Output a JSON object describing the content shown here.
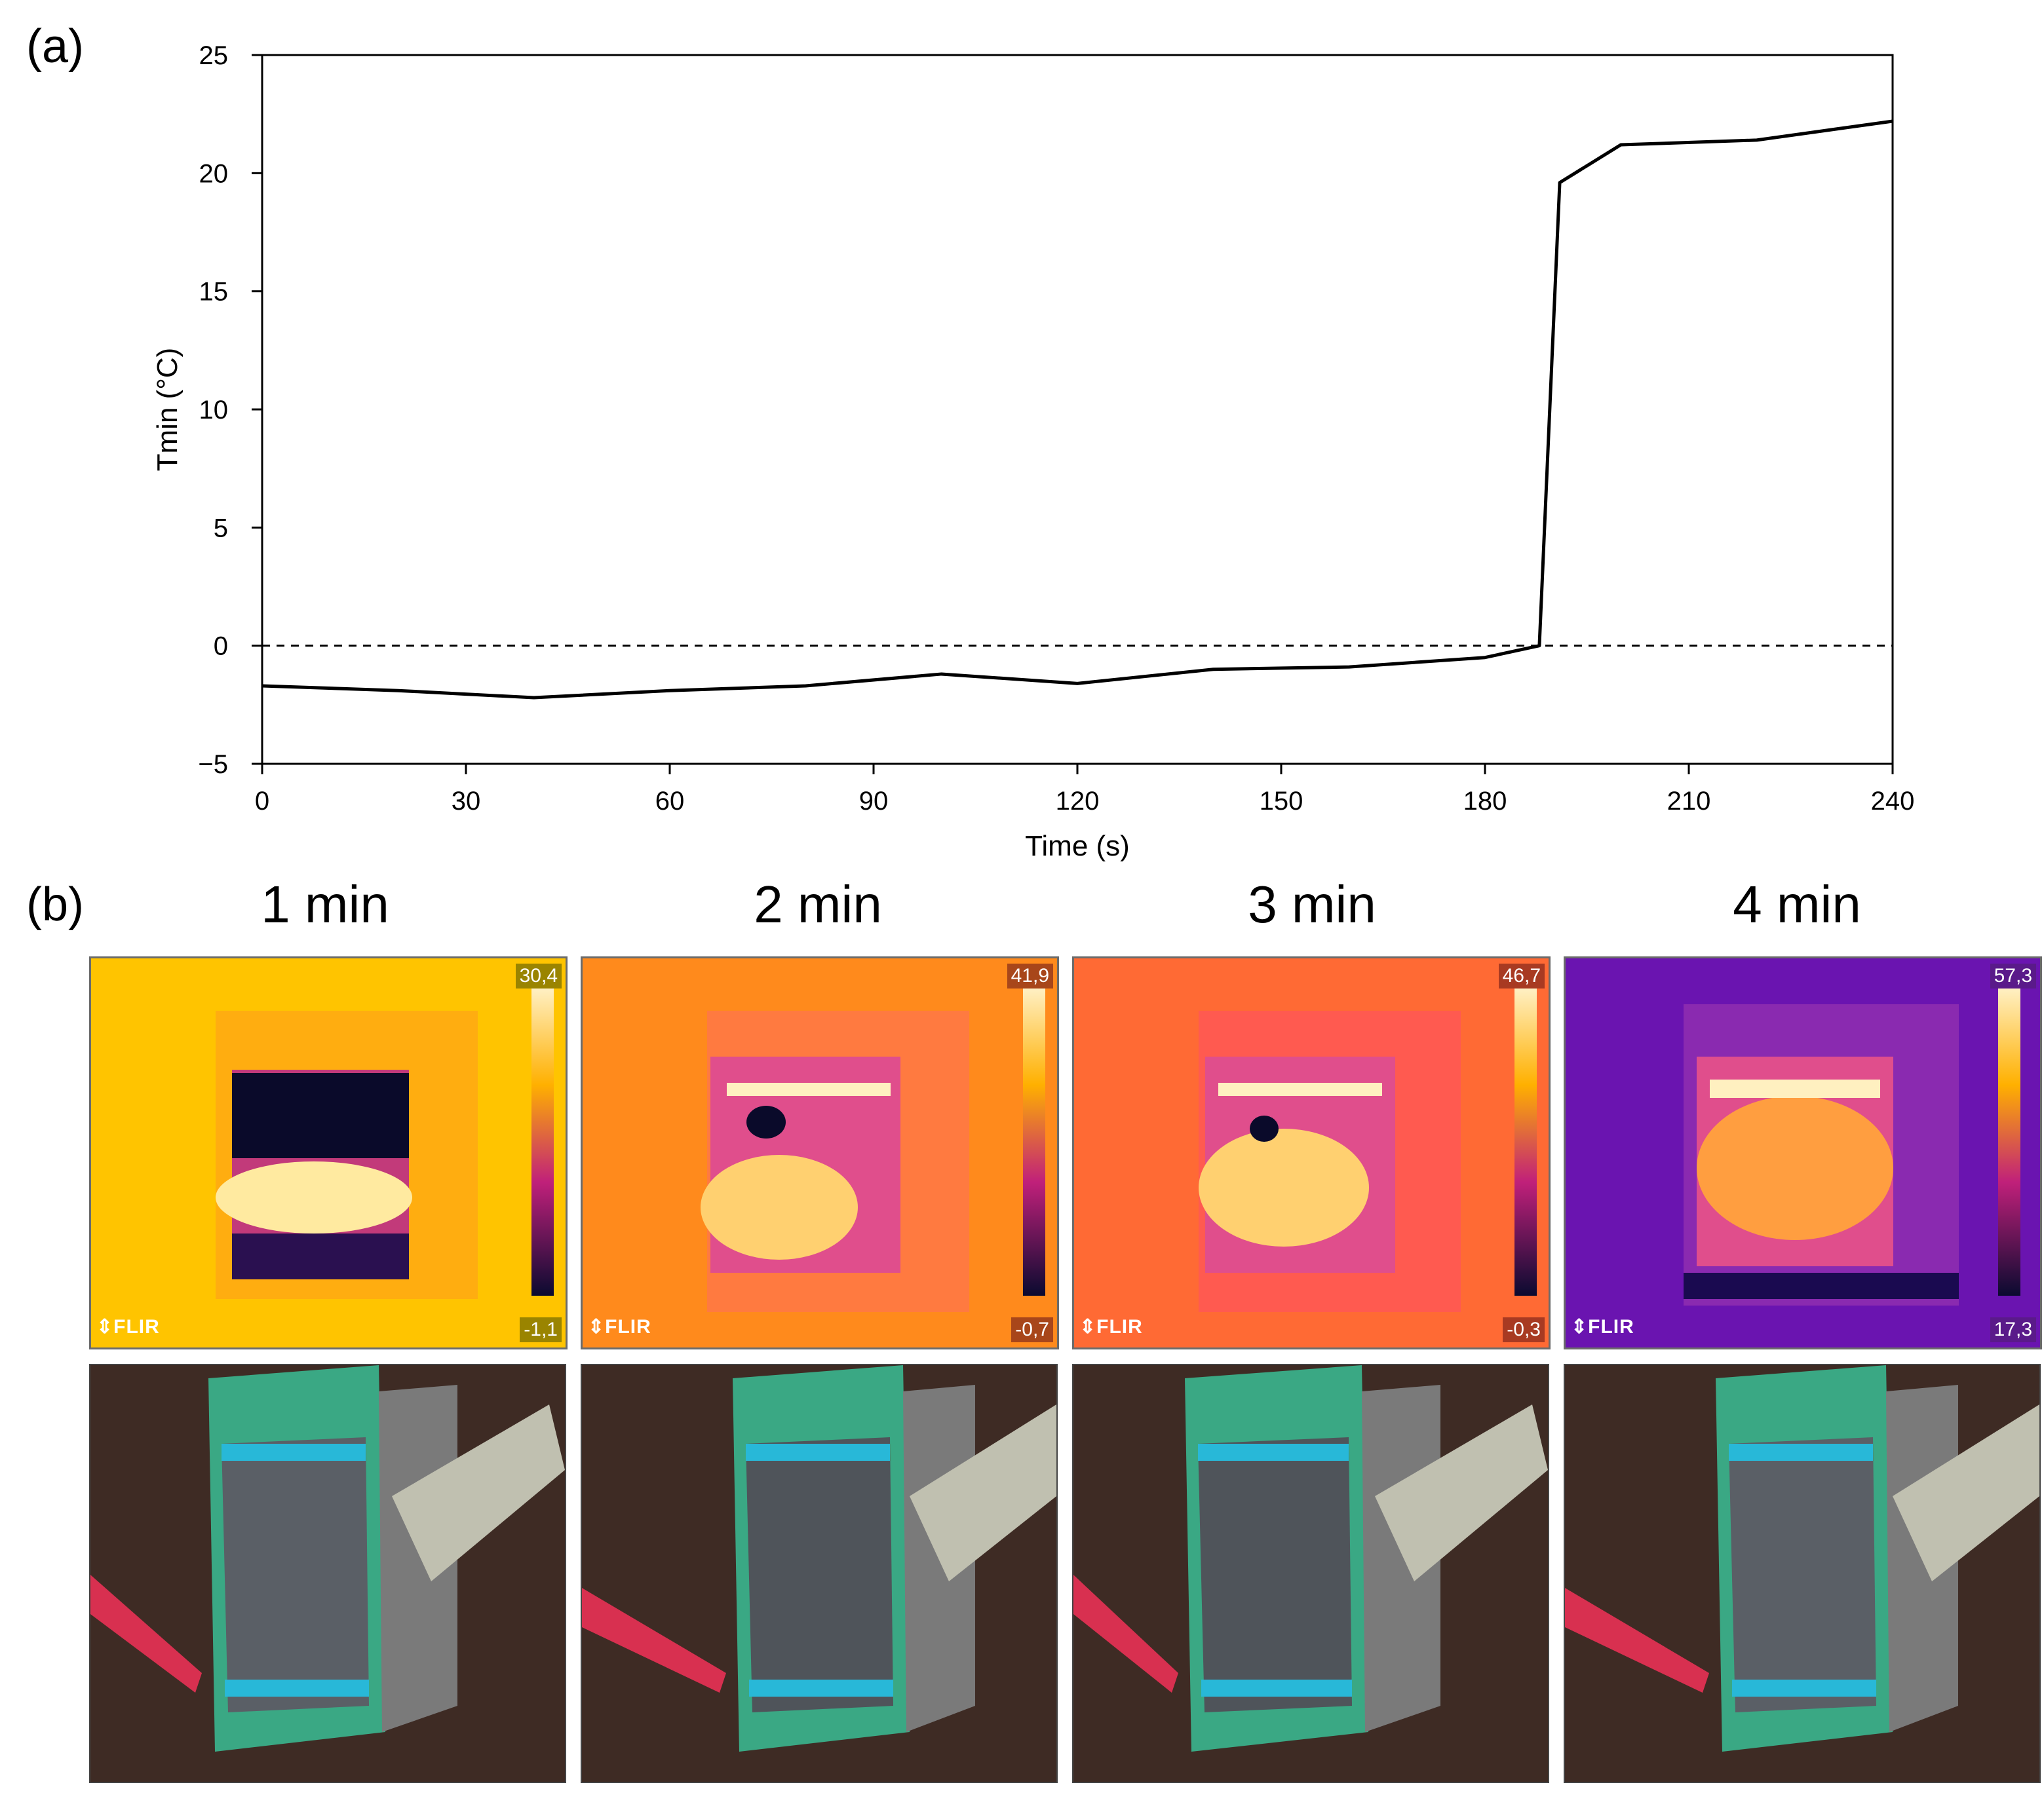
{
  "panel_labels": {
    "a": "(a)",
    "b": "(b)"
  },
  "chart_data": {
    "type": "line",
    "title": "",
    "xlabel": "Time (s)",
    "ylabel": "Tmin (°C)",
    "xlim": [
      0,
      240
    ],
    "ylim": [
      -5,
      25
    ],
    "xticks": [
      0,
      30,
      60,
      90,
      120,
      150,
      180,
      210,
      240
    ],
    "yticks": [
      -5,
      0,
      5,
      10,
      15,
      20,
      25
    ],
    "ytick_labels": [
      "−5",
      "0",
      "5",
      "10",
      "15",
      "20",
      "25"
    ],
    "reference_line": {
      "y": 0,
      "style": "dashed"
    },
    "series": [
      {
        "name": "Tmin",
        "x": [
          0,
          20,
          40,
          60,
          80,
          100,
          120,
          140,
          160,
          180,
          188,
          191,
          200,
          220,
          240
        ],
        "y": [
          -1.7,
          -1.9,
          -2.2,
          -1.9,
          -1.7,
          -1.2,
          -1.6,
          -1.0,
          -0.9,
          -0.5,
          0.0,
          19.6,
          21.2,
          21.4,
          22.2
        ]
      }
    ]
  },
  "thermal_images": [
    {
      "title": "1 min",
      "max": "30,4",
      "min": "-1,1",
      "logo": "⇕FLIR",
      "badge_color": "#9a8400",
      "bg": "#ffc400"
    },
    {
      "title": "2 min",
      "max": "41,9",
      "min": "-0,7",
      "logo": "⇕FLIR",
      "badge_color": "#a8461a",
      "bg": "#ff8a1c"
    },
    {
      "title": "3 min",
      "max": "46,7",
      "min": "-0,3",
      "logo": "⇕FLIR",
      "badge_color": "#a83a22",
      "bg": "#ff6a34"
    },
    {
      "title": "4 min",
      "max": "57,3",
      "min": "17,3",
      "logo": "⇕FLIR",
      "badge_color": "#5a1a8a",
      "bg": "#6a14b0"
    }
  ]
}
